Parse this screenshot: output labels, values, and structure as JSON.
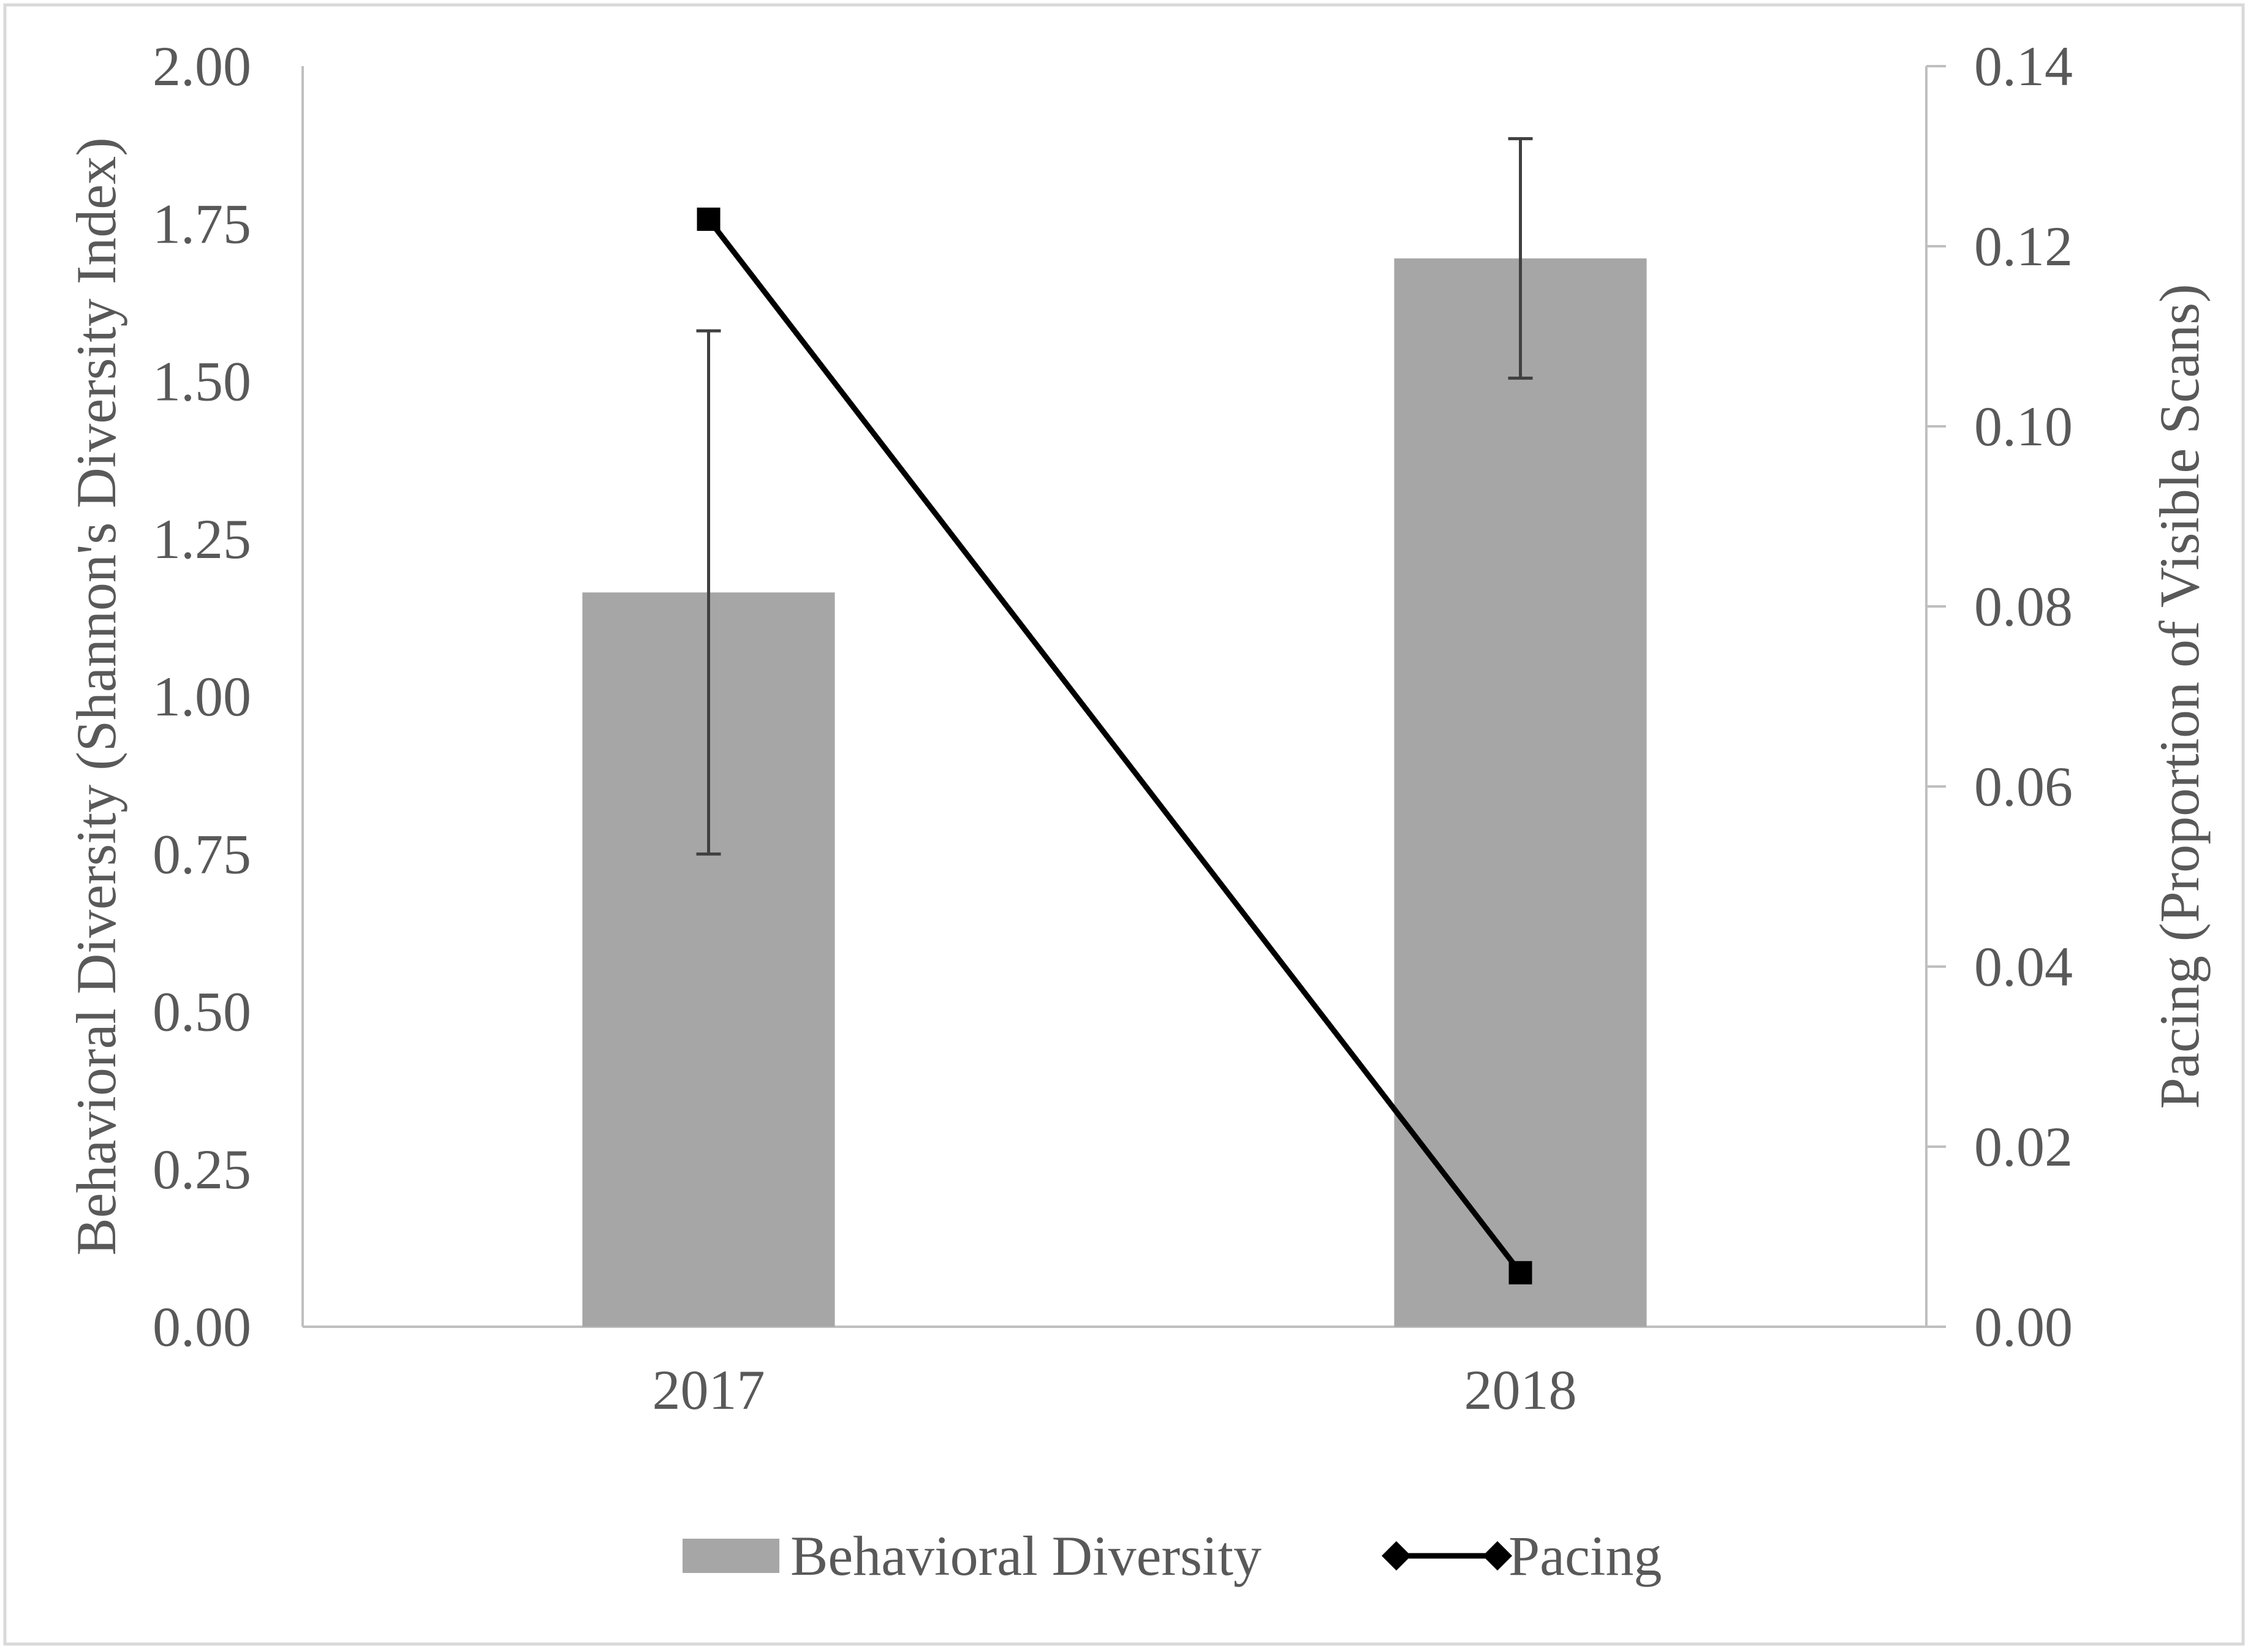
{
  "chart_data": {
    "type": "bar",
    "categories": [
      "2017",
      "2018"
    ],
    "series": [
      {
        "name": "Behavioral Diversity",
        "type": "bar",
        "axis": "left",
        "values": [
          1.165,
          1.695
        ],
        "error": [
          0.415,
          0.19
        ],
        "color": "#a6a6a6"
      },
      {
        "name": "Pacing",
        "type": "line",
        "axis": "right",
        "marker": "diamond",
        "values": [
          0.123,
          0.006
        ],
        "color": "#000000"
      }
    ],
    "ylabel": "Behavioral Diversity (Shannon's Diversity Index)",
    "ylim": [
      0,
      2
    ],
    "yticks": [
      "0.00",
      "0.25",
      "0.50",
      "0.75",
      "1.00",
      "1.25",
      "1.50",
      "1.75",
      "2.00"
    ],
    "y2label": "Pacing (Proportion of Visible Scans)",
    "y2lim": [
      0,
      0.14
    ],
    "y2ticks": [
      "0.00",
      "0.02",
      "0.04",
      "0.06",
      "0.08",
      "0.10",
      "0.12",
      "0.14"
    ],
    "grid": false,
    "legend_position": "bottom",
    "colors": {
      "text": "#595959",
      "axis": "#bfbfbf",
      "error_bar": "#404040",
      "frame": "#d9d9d9"
    }
  }
}
